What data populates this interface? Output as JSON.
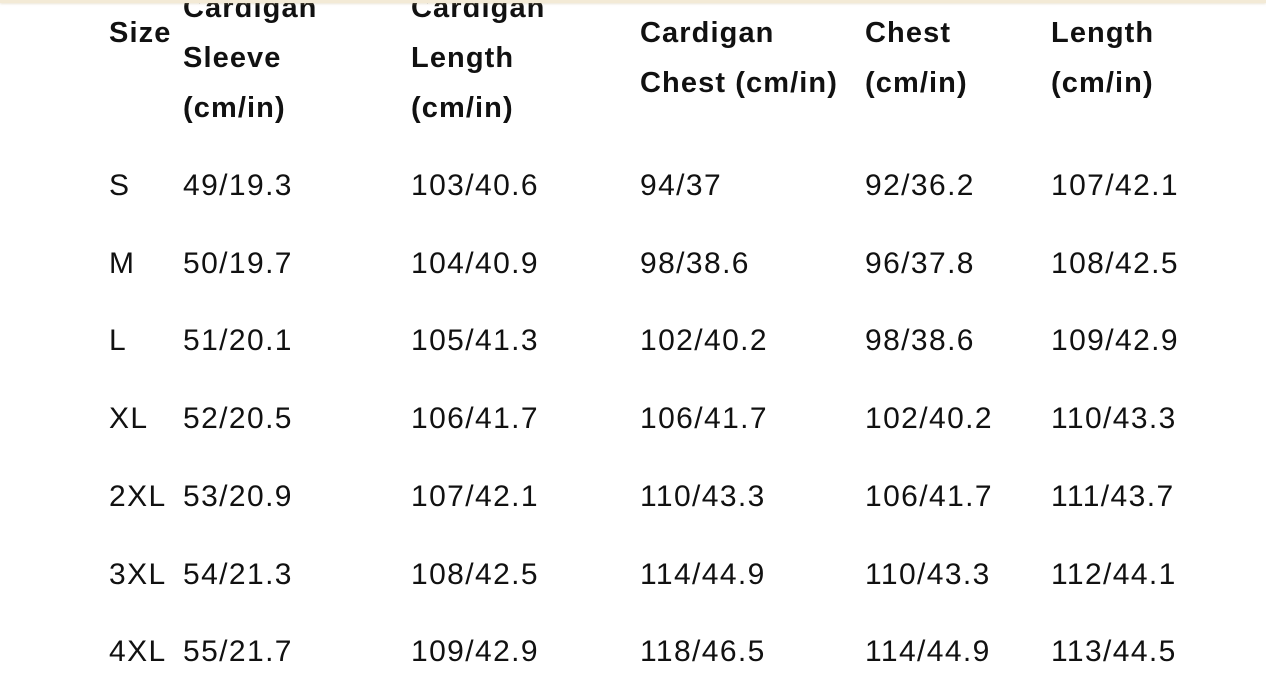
{
  "table": {
    "header": [
      [
        "Size"
      ],
      [
        "Cardigan",
        "Sleeve",
        "(cm/in)"
      ],
      [
        "Cardigan",
        "Length",
        "(cm/in)"
      ],
      [
        "Cardigan",
        "Chest (cm/in)"
      ],
      [
        "Chest",
        "(cm/in)"
      ],
      [
        "Length",
        "(cm/in)"
      ]
    ],
    "rows": [
      [
        "S",
        "49/19.3",
        "103/40.6",
        "94/37",
        "92/36.2",
        "107/42.1"
      ],
      [
        "M",
        "50/19.7",
        "104/40.9",
        "98/38.6",
        "96/37.8",
        "108/42.5"
      ],
      [
        "L",
        "51/20.1",
        "105/41.3",
        "102/40.2",
        "98/38.6",
        "109/42.9"
      ],
      [
        "XL",
        "52/20.5",
        "106/41.7",
        "106/41.7",
        "102/40.2",
        "110/43.3"
      ],
      [
        "2XL",
        "53/20.9",
        "107/42.1",
        "110/43.3",
        "106/41.7",
        "111/43.7"
      ],
      [
        "3XL",
        "54/21.3",
        "108/42.5",
        "114/44.9",
        "110/43.3",
        "112/44.1"
      ],
      [
        "4XL",
        "55/21.7",
        "109/42.9",
        "118/46.5",
        "114/44.9",
        "113/44.5"
      ]
    ]
  }
}
